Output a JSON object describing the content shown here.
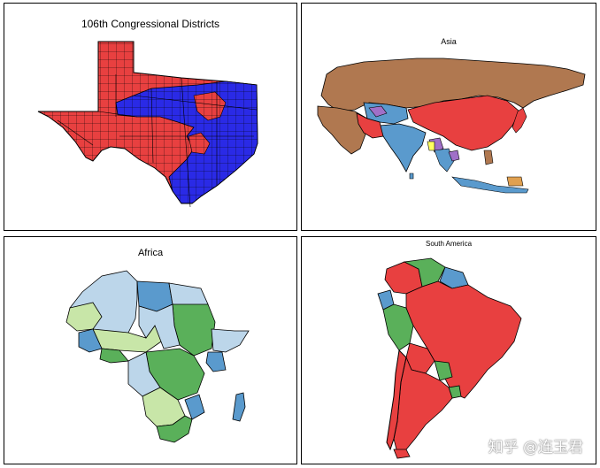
{
  "panels": {
    "texas": {
      "title": "106th Congressional Districts"
    },
    "asia": {
      "title": "Asia"
    },
    "africa": {
      "title": "Africa"
    },
    "south_america": {
      "title": "South America"
    }
  },
  "colors": {
    "red": "#e84040",
    "blue": "#2a2ae6",
    "brown": "#b07850",
    "steel_blue": "#5a9acd",
    "purple": "#a070c8",
    "yellow": "#ffff60",
    "orange": "#e0a050",
    "light_blue": "#bcd6ea",
    "light_green": "#c8e6a8",
    "green": "#5ab05a"
  },
  "watermark": "知乎 @连玉君"
}
